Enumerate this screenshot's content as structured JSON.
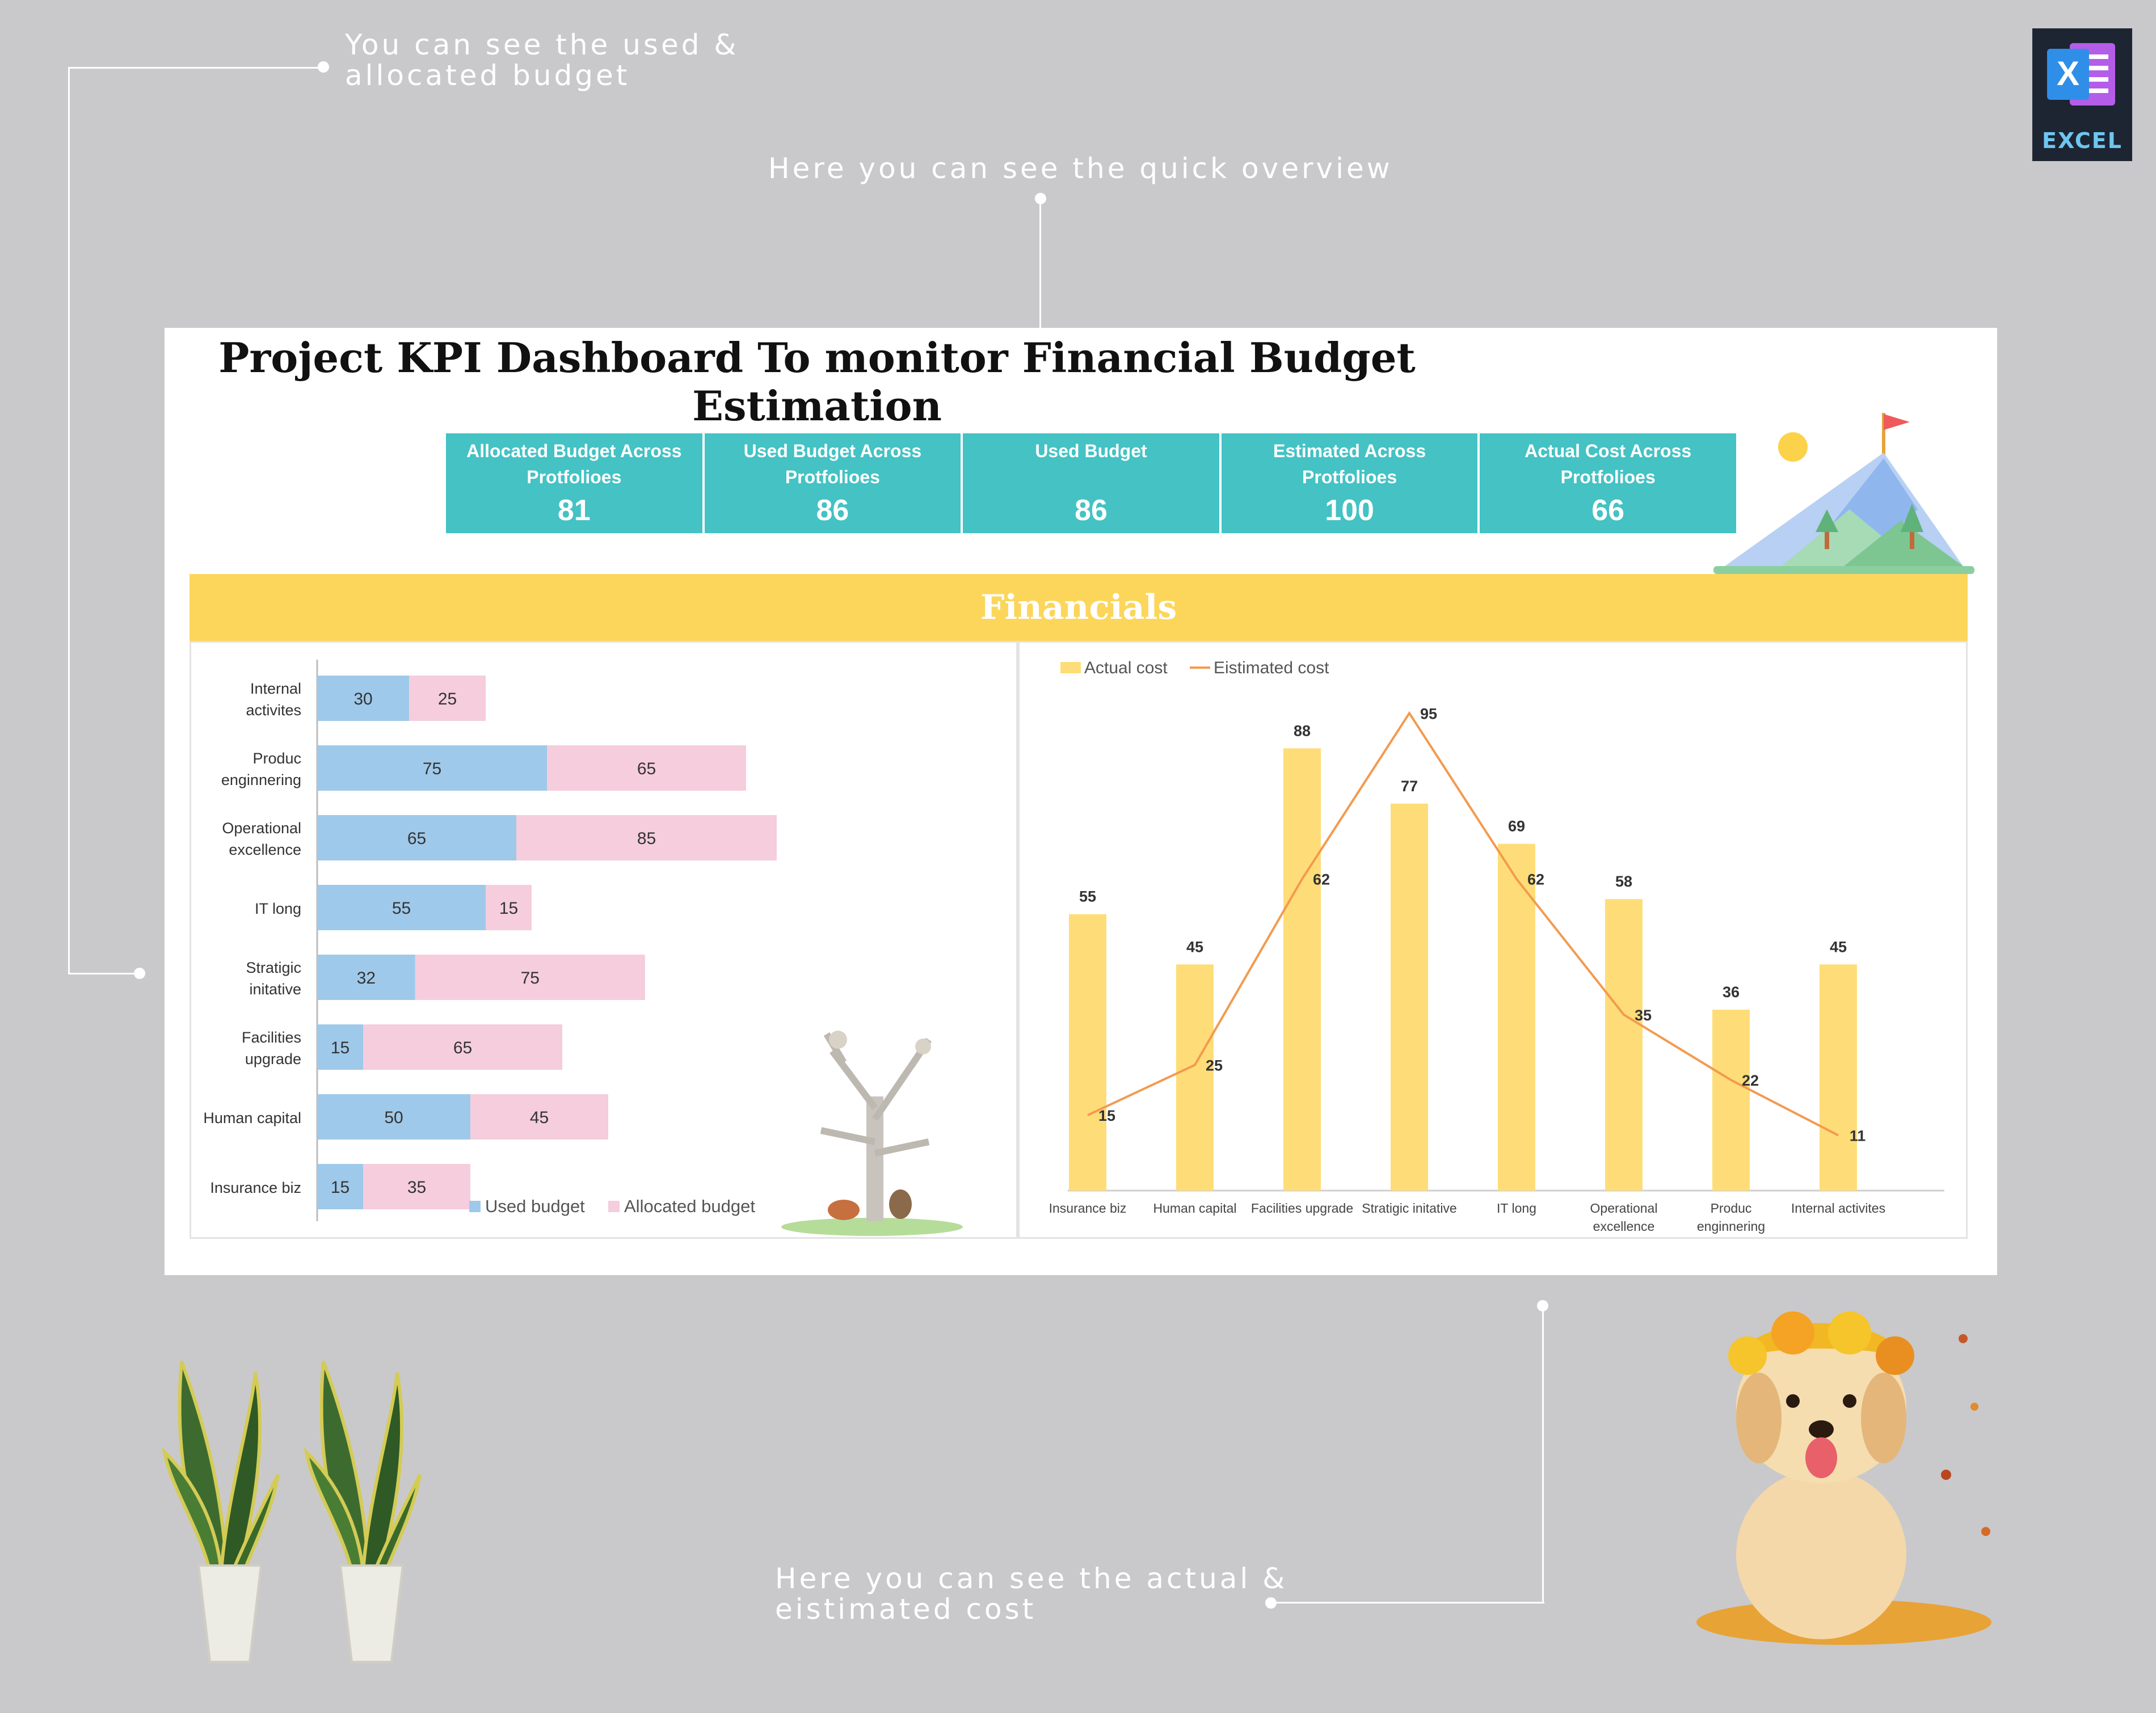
{
  "annotations": {
    "used_allocated": [
      "You can see the used &",
      "allocated budget"
    ],
    "quick_overview": "Here you can see the quick overview",
    "actual_estimated": [
      "Here you can see the actual &",
      "eistimated cost"
    ]
  },
  "badge": {
    "label": "EXCEL",
    "letter": "X"
  },
  "dashboard": {
    "title": "Project KPI Dashboard To monitor Financial Budget Estimation",
    "kpis": [
      {
        "label": [
          "Allocated Budget Across",
          "Protfolioes"
        ],
        "value": "81"
      },
      {
        "label": [
          "Used Budget Across",
          "Protfolioes"
        ],
        "value": "86"
      },
      {
        "label": [
          "Used Budget"
        ],
        "value": "86"
      },
      {
        "label": [
          "Estimated Across",
          "Protfolioes"
        ],
        "value": "100"
      },
      {
        "label": [
          "Actual Cost  Across",
          "Protfolioes"
        ],
        "value": "66"
      }
    ],
    "section_title": "Financials"
  },
  "colors": {
    "kpi_teal": "#44c2c4",
    "band_yellow": "#fcd65b",
    "used_blue": "#9fc9ea",
    "allocated_pink": "#f5cddd",
    "actual_yellow": "#fedd78",
    "estimated_orange": "#f39a4f"
  },
  "chart_data": [
    {
      "type": "bar",
      "orientation": "horizontal",
      "stacked": true,
      "categories": [
        [
          "Internal",
          "activites"
        ],
        [
          "Produc",
          "enginnering"
        ],
        [
          "Operational",
          "excellence"
        ],
        [
          "IT long"
        ],
        [
          "Stratigic",
          "initative"
        ],
        [
          "Facilities",
          "upgrade"
        ],
        [
          "Human capital"
        ],
        [
          "Insurance biz"
        ]
      ],
      "series": [
        {
          "name": "Used budget",
          "values": [
            30,
            75,
            65,
            55,
            32,
            15,
            50,
            15
          ]
        },
        {
          "name": "Allocated budget",
          "values": [
            25,
            65,
            85,
            15,
            75,
            65,
            45,
            35
          ]
        }
      ],
      "legend": "bottom",
      "grid": false
    },
    {
      "type": "bar+line",
      "categories": [
        [
          "Insurance biz"
        ],
        [
          "Human capital"
        ],
        [
          "Facilities upgrade"
        ],
        [
          "Stratigic initative"
        ],
        [
          "IT long"
        ],
        [
          "Operational",
          "excellence"
        ],
        [
          "Produc",
          "enginnering"
        ],
        [
          "Internal activites"
        ]
      ],
      "series": [
        {
          "name": "Actual cost",
          "type": "bar",
          "values": [
            55,
            45,
            88,
            77,
            69,
            58,
            36,
            45
          ]
        },
        {
          "name": "Eistimated cost",
          "type": "line",
          "values": [
            15,
            25,
            62,
            95,
            62,
            35,
            22,
            11
          ]
        }
      ],
      "ylim": [
        0,
        100
      ],
      "legend": "top-left",
      "grid": false
    }
  ]
}
